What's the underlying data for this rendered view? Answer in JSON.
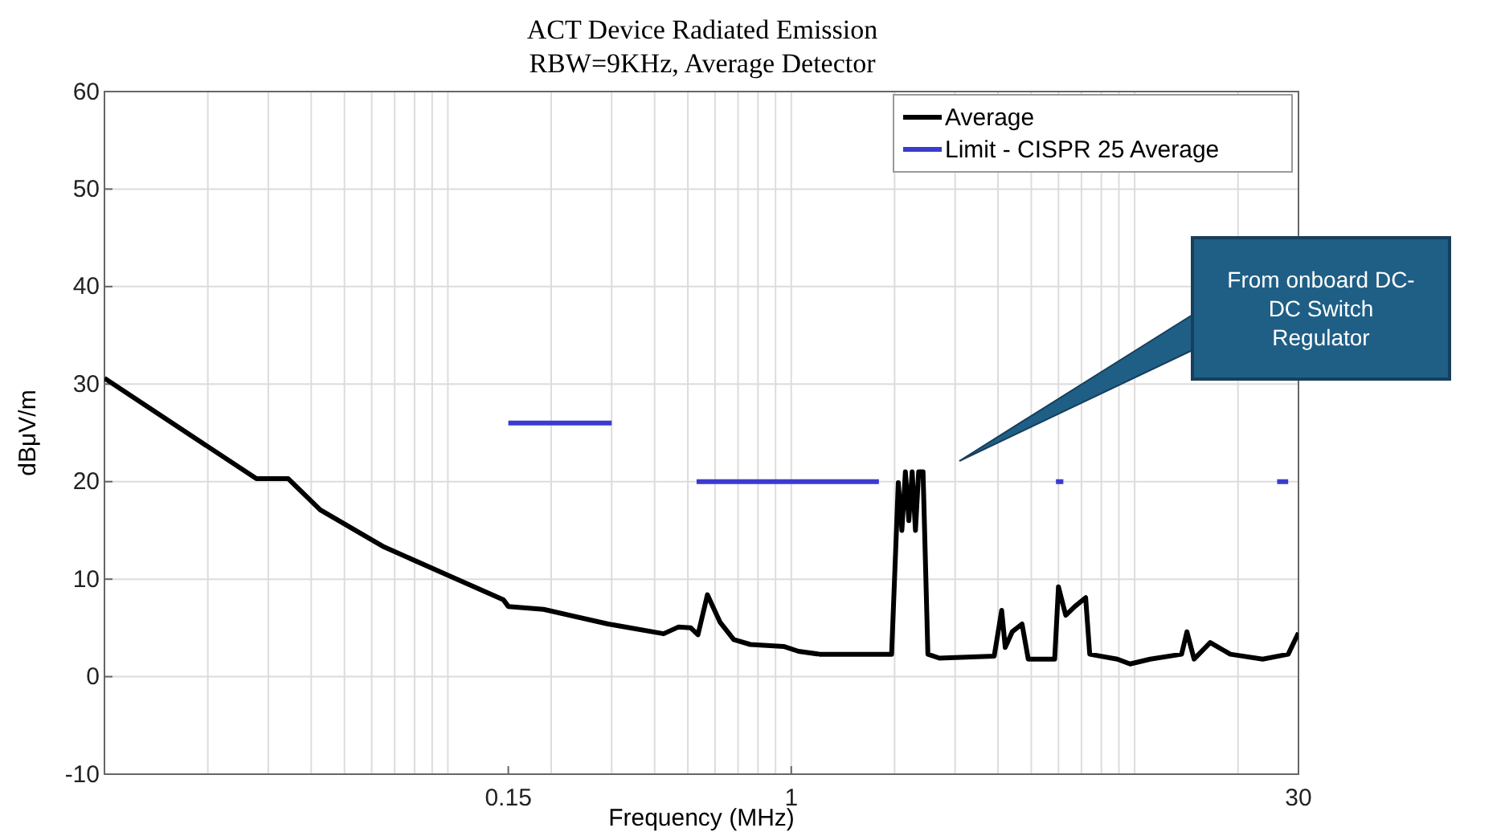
{
  "chart_data": {
    "type": "line",
    "title": "ACT Device Radiated Emission",
    "subtitle": "RBW=9KHz, Average Detector",
    "xlabel": "Frequency (MHz)",
    "ylabel": "dBμV/m",
    "log": "x",
    "xlim": [
      0.01,
      30
    ],
    "xticks": [
      0.15,
      1,
      30
    ],
    "ylim": [
      -10,
      60
    ],
    "yticks": [
      -10,
      0,
      10,
      20,
      30,
      40,
      50,
      60
    ],
    "grid": true,
    "legend": "top right",
    "line_style": "solid",
    "marker": "none",
    "series": [
      {
        "name": "Average",
        "color": "#000000",
        "x": [
          0.01,
          0.0277,
          0.0343,
          0.0425,
          0.0652,
          0.1,
          0.145,
          0.15,
          0.19,
          0.293,
          0.425,
          0.47,
          0.51,
          0.535,
          0.57,
          0.62,
          0.68,
          0.76,
          0.95,
          1.05,
          1.21,
          1.86,
          1.96,
          2.05,
          2.1,
          2.15,
          2.2,
          2.25,
          2.3,
          2.35,
          2.42,
          2.5,
          2.7,
          3.9,
          4.1,
          4.2,
          4.4,
          4.7,
          4.9,
          5.85,
          6.0,
          6.3,
          6.7,
          7.2,
          7.4,
          8.9,
          9.7,
          11.1,
          13.7,
          14.2,
          14.9,
          16.6,
          19.0,
          23.6,
          28.0,
          30
        ],
        "values": [
          30.6,
          20.3,
          20.3,
          17.1,
          13.3,
          10.4,
          7.9,
          7.2,
          6.9,
          5.4,
          4.4,
          5.1,
          5.0,
          4.3,
          8.4,
          5.6,
          3.8,
          3.3,
          3.1,
          2.6,
          2.3,
          2.3,
          2.3,
          19.9,
          15,
          21,
          16,
          21,
          15,
          21,
          21,
          2.3,
          1.9,
          2.1,
          6.8,
          3,
          4.6,
          5.4,
          1.8,
          1.8,
          9.2,
          6.3,
          7.2,
          8.1,
          2.3,
          1.8,
          1.3,
          1.8,
          2.3,
          4.6,
          1.8,
          3.5,
          2.3,
          1.8,
          2.3,
          4.5
        ]
      },
      {
        "name": "Limit - CISPR 25 Average",
        "color": "#3b3bd0",
        "x": [
          0.15,
          0.3,
          0.4,
          0.53,
          1.8,
          3,
          5.9,
          6.2,
          12,
          26,
          28
        ],
        "values": [
          26,
          26,
          null,
          20,
          20,
          null,
          20,
          20,
          null,
          20,
          20
        ]
      }
    ],
    "annotations": [
      "From onboard DC-DC Switch Regulator"
    ]
  }
}
